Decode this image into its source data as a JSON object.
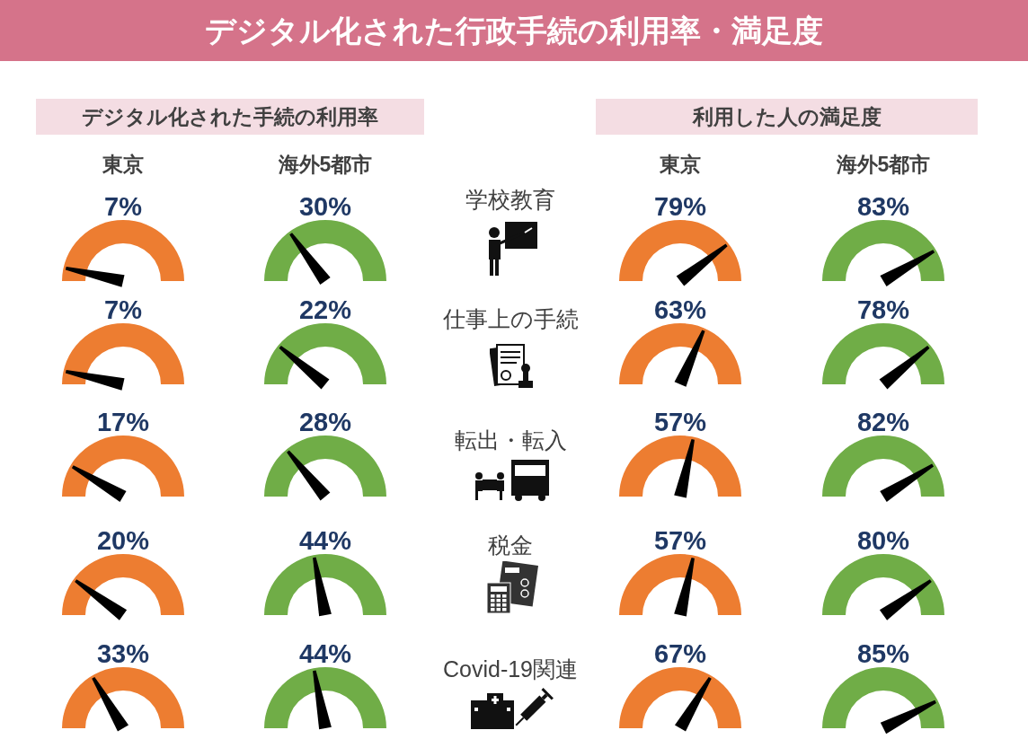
{
  "chart_data": [
    {
      "type": "other",
      "title": "デジタル化された行政手続の利用率・満足度",
      "annotations": [
        "デジタル化された手続の利用率",
        "利用した人の満足度"
      ],
      "categories": [
        "学校教育",
        "仕事上の手続",
        "転出・転入",
        "税金",
        "Covid-19関連"
      ]
    },
    {
      "type": "other",
      "title": "東京",
      "color": "#ed7d31",
      "values": [
        7,
        7,
        17,
        20,
        33
      ],
      "value_labels": [
        "7%",
        "7%",
        "17%",
        "20%",
        "33%"
      ]
    },
    {
      "type": "other",
      "title": "海外5都市",
      "color": "#70ad47",
      "values": [
        30,
        22,
        28,
        44,
        44
      ],
      "value_labels": [
        "30%",
        "22%",
        "28%",
        "44%",
        "44%"
      ]
    },
    {
      "type": "other",
      "title": "東京",
      "color": "#ed7d31",
      "values": [
        79,
        63,
        57,
        57,
        67
      ],
      "value_labels": [
        "79%",
        "63%",
        "57%",
        "57%",
        "67%"
      ]
    },
    {
      "type": "other",
      "title": "海外5都市",
      "color": "#70ad47",
      "values": [
        83,
        78,
        82,
        80,
        85
      ],
      "value_labels": [
        "83%",
        "78%",
        "82%",
        "80%",
        "85%"
      ]
    }
  ]
}
